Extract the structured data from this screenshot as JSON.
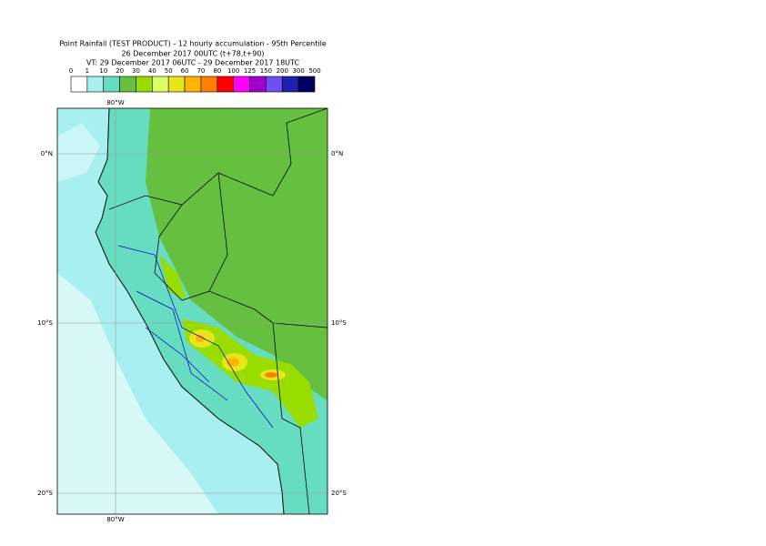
{
  "header": {
    "title_lines": [
      "Point Rainfall (TEST PRODUCT) - 12 hourly accumulation - 95th Percentile",
      "26 December 2017 00UTC (t+78,t+90)",
      "VT: 29 December 2017 06UTC - 29 December 2017 18UTC"
    ]
  },
  "colorbar": {
    "levels": [
      0,
      1,
      10,
      20,
      30,
      40,
      50,
      60,
      70,
      80,
      100,
      125,
      150,
      200,
      300,
      500
    ],
    "colors": [
      "#ffffff",
      "#a8f0f0",
      "#66dcc0",
      "#66c040",
      "#99dd00",
      "#ddff66",
      "#e6e61a",
      "#ffb400",
      "#ff8000",
      "#ff0000",
      "#ff00ff",
      "#a000cc",
      "#7050f0",
      "#2020b0",
      "#000060"
    ]
  },
  "map": {
    "lat_labels": [
      "0°N",
      "10°S",
      "20°S"
    ],
    "lon_labels": [
      "80°W"
    ]
  }
}
